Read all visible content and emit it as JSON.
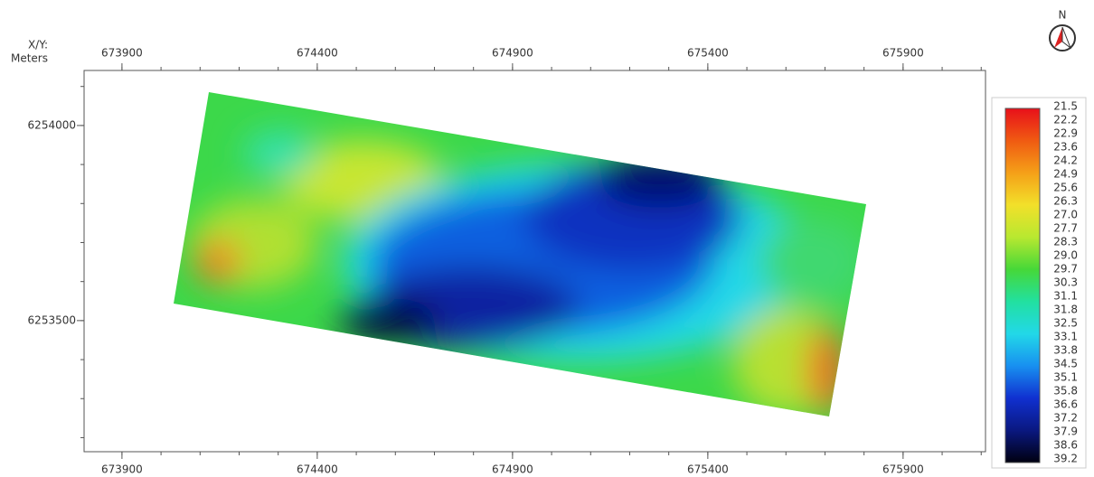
{
  "north_label": "N",
  "axis_caption": [
    "X/Y:",
    "Meters"
  ],
  "xlim": [
    673803,
    676111
  ],
  "ylim": [
    6253164,
    6254141
  ],
  "xticks": [
    673900,
    674400,
    674900,
    675400,
    675900
  ],
  "yticks": [
    6253500,
    6254000
  ],
  "colorbar": {
    "labels": [
      "21.5",
      "22.2",
      "22.9",
      "23.6",
      "24.2",
      "24.9",
      "25.6",
      "26.3",
      "27.0",
      "27.7",
      "28.3",
      "29.0",
      "29.7",
      "30.3",
      "31.1",
      "31.8",
      "32.5",
      "33.1",
      "33.8",
      "34.5",
      "35.1",
      "35.8",
      "36.6",
      "37.2",
      "37.9",
      "38.6",
      "39.2"
    ],
    "colors": [
      "#e8101a",
      "#f05a12",
      "#f5a018",
      "#f2e02a",
      "#b8e830",
      "#46d838",
      "#22e0a0",
      "#22d8e8",
      "#1890f0",
      "#1030d0",
      "#0a1880",
      "#000010"
    ]
  }
}
